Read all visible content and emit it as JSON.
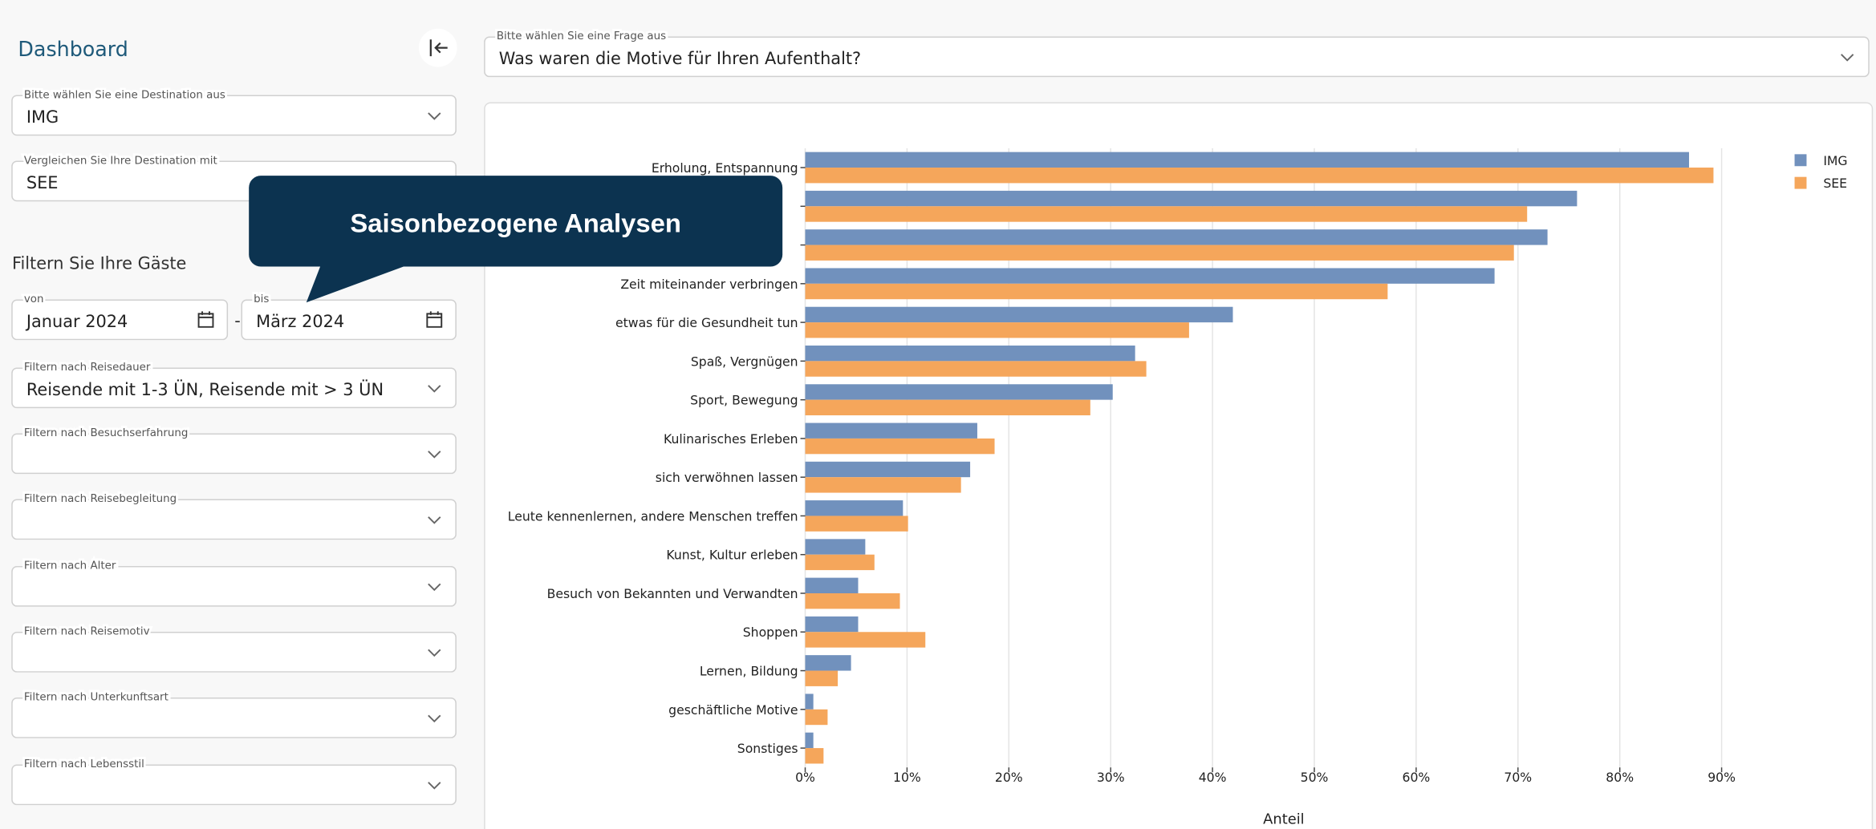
{
  "sidebar": {
    "title": "Dashboard",
    "destination": {
      "label": "Bitte wählen Sie eine Destination aus",
      "value": "IMG"
    },
    "compare": {
      "label": "Vergleichen Sie Ihre Destination mit",
      "value": "SEE"
    },
    "filter_heading": "Filtern Sie Ihre Gäste",
    "from": {
      "label": "von",
      "value": "Januar 2024"
    },
    "separator": "-",
    "to": {
      "label": "bis",
      "value": "März 2024"
    },
    "filters": [
      {
        "label": "Filtern nach Reisedauer",
        "value": "Reisende mit 1-3 ÜN, Reisende mit > 3 ÜN"
      },
      {
        "label": "Filtern nach Besuchserfahrung"
      },
      {
        "label": "Filtern nach Reisebegleitung"
      },
      {
        "label": "Filtern nach Alter"
      },
      {
        "label": "Filtern nach Reisemotiv"
      },
      {
        "label": "Filtern nach Unterkunftsart"
      },
      {
        "label": "Filtern nach Lebensstil"
      }
    ]
  },
  "question": {
    "label": "Bitte wählen Sie eine Frage aus",
    "value": "Was waren die Motive für Ihren Aufenthalt?"
  },
  "callout": "Saisonbezogene Analysen",
  "chart_data": {
    "type": "hbar",
    "xlabel": "Anteil",
    "categories": [
      "Erholung, Entspannung",
      null,
      null,
      "Zeit miteinander verbringen",
      "etwas für die Gesundheit tun",
      "Spaß, Vergnügen",
      "Sport, Bewegung",
      "Kulinarisches Erleben",
      "sich verwöhnen lassen",
      "Leute kennenlernen, andere Menschen treffen",
      "Kunst, Kultur erleben",
      "Besuch von Bekannten und Verwandten",
      "Shoppen",
      "Lernen, Bildung",
      "geschäftliche Motive",
      "Sonstiges"
    ],
    "series": [
      {
        "name": "IMG",
        "color": "#7191bd",
        "values": [
          86.8,
          75.8,
          72.9,
          67.7,
          42.0,
          32.4,
          30.2,
          16.9,
          16.2,
          9.6,
          5.9,
          5.2,
          5.2,
          4.5,
          0.8,
          0.8
        ]
      },
      {
        "name": "SEE",
        "color": "#f5a65b",
        "values": [
          89.2,
          70.9,
          69.6,
          57.2,
          37.7,
          33.5,
          28.0,
          18.6,
          15.3,
          10.1,
          6.8,
          9.3,
          11.8,
          3.2,
          2.2,
          1.8
        ]
      }
    ],
    "xlim": [
      0,
      95
    ],
    "xticks": [
      {
        "value": 0,
        "label": "0%"
      },
      {
        "value": 10,
        "label": "10%"
      },
      {
        "value": 20,
        "label": "20%"
      },
      {
        "value": 30,
        "label": "30%"
      },
      {
        "value": 40,
        "label": "40%"
      },
      {
        "value": 50,
        "label": "50%"
      },
      {
        "value": 60,
        "label": "60%"
      },
      {
        "value": 70,
        "label": "70%"
      },
      {
        "value": 80,
        "label": "80%"
      },
      {
        "value": 90,
        "label": "90%"
      }
    ],
    "grid": true,
    "legend": "upper right"
  }
}
